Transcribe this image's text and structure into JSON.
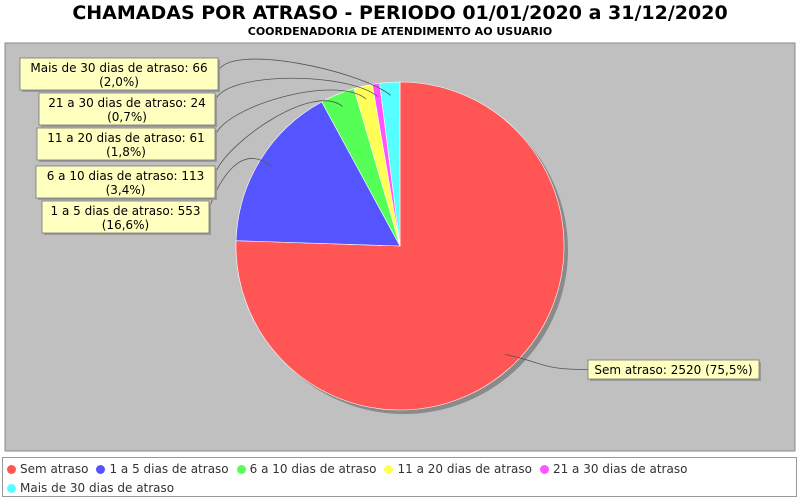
{
  "chart_data": {
    "type": "pie",
    "title": "CHAMADAS POR ATRASO - PERIODO 01/01/2020 a 31/12/2020",
    "subtitle": "COORDENADORIA DE ATENDIMENTO AO USUARIO",
    "slices": [
      {
        "name": "Sem atraso",
        "value": 2520,
        "percent": "75,5%",
        "label": "Sem atraso: 2520 (75,5%)",
        "color": "#ff5555"
      },
      {
        "name": "1 a 5 dias de atraso",
        "value": 553,
        "percent": "16,6%",
        "label_line1": "1 a 5 dias de atraso: 553",
        "label_line2": "(16,6%)",
        "color": "#5555ff"
      },
      {
        "name": "6 a 10 dias de atraso",
        "value": 113,
        "percent": "3,4%",
        "label_line1": "6 a 10 dias de atraso: 113",
        "label_line2": "(3,4%)",
        "color": "#55ff55"
      },
      {
        "name": "11 a 20 dias de atraso",
        "value": 61,
        "percent": "1,8%",
        "label_line1": "11 a 20 dias de atraso: 61",
        "label_line2": "(1,8%)",
        "color": "#ffff55"
      },
      {
        "name": "21 a 30 dias de atraso",
        "value": 24,
        "percent": "0,7%",
        "label_line1": "21 a 30 dias de atraso: 24",
        "label_line2": "(0,7%)",
        "color": "#ff55ff"
      },
      {
        "name": "Mais de 30 dias de atraso",
        "value": 66,
        "percent": "2,0%",
        "label_line1": "Mais de 30 dias de atraso: 66",
        "label_line2": "(2,0%)",
        "color": "#55ffff"
      }
    ],
    "legend_position": "bottom",
    "plot_background": "#c0c0c0",
    "label_background": "#ffffc0"
  }
}
